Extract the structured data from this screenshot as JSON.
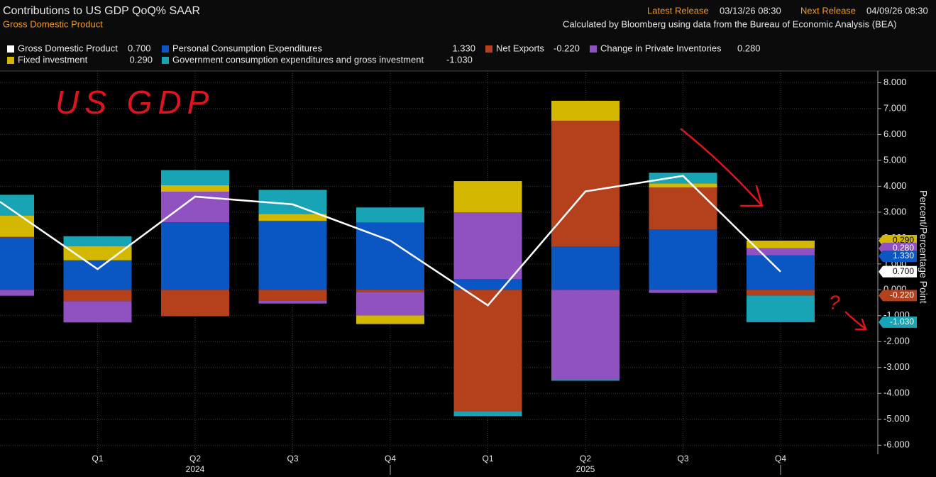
{
  "chart_data": {
    "type": "stacked_bar",
    "title": "Contributions to US GDP QoQ% SAAR",
    "subtitle": "Gross Domestic Product",
    "latest_release_label": "Latest Release",
    "latest_release": "03/13/26 08:30",
    "next_release_label": "Next Release",
    "next_release": "04/09/26 08:30",
    "source": "Calculated by Bloomberg using data from the Bureau of Economic Analysis (BEA)",
    "y_axis_label": "Percent/Percentage Point",
    "annotations": [
      "US GDP",
      "?"
    ],
    "categories": [
      null,
      "Q1",
      "Q2",
      "Q3",
      "Q4",
      "Q1",
      "Q2",
      "Q3",
      "Q4"
    ],
    "year_labels": [
      "2024",
      "2025"
    ],
    "series": [
      {
        "name": "Gross Domestic Product",
        "type": "line",
        "color": "#ffffff",
        "legend_value": "0.700",
        "values": [
          3.4,
          0.8,
          3.6,
          3.3,
          1.9,
          -0.6,
          3.8,
          4.4,
          0.7
        ]
      },
      {
        "name": "Personal Consumption Expenditures",
        "type": "bar",
        "color": "#0a56c2",
        "legend_value": "1.330",
        "values": [
          2.02,
          1.14,
          2.61,
          2.66,
          2.6,
          0.41,
          1.67,
          2.33,
          1.33
        ]
      },
      {
        "name": "Net Exports",
        "type": "bar",
        "color": "#b5401c",
        "legend_value": "-0.220",
        "values": [
          0.03,
          -0.44,
          -1.02,
          -0.42,
          -0.08,
          -4.69,
          4.86,
          1.62,
          -0.22
        ]
      },
      {
        "name": "Change in Private Inventories",
        "type": "bar",
        "color": "#9052c0",
        "legend_value": "0.280",
        "values": [
          -0.23,
          -0.82,
          1.18,
          -0.11,
          -0.91,
          2.58,
          -3.46,
          -0.12,
          0.28
        ]
      },
      {
        "name": "Fixed investment",
        "type": "bar",
        "color": "#d4b800",
        "legend_value": "0.290",
        "values": [
          0.82,
          0.55,
          0.25,
          0.27,
          -0.33,
          1.21,
          0.77,
          0.16,
          0.29
        ]
      },
      {
        "name": "Government consumption expenditures and gross investment",
        "type": "bar",
        "color": "#18a4b4",
        "legend_value": "-1.030",
        "values": [
          0.8,
          0.38,
          0.58,
          0.93,
          0.58,
          -0.19,
          -0.05,
          0.41,
          -1.03
        ]
      }
    ],
    "ylim": [
      -6.35,
      8.45
    ],
    "yticks": [
      {
        "value": 8,
        "label": "8.000"
      },
      {
        "value": 7,
        "label": "7.000"
      },
      {
        "value": 6,
        "label": "6.000"
      },
      {
        "value": 5,
        "label": "5.000"
      },
      {
        "value": 4,
        "label": "4.000"
      },
      {
        "value": 3,
        "label": "3.000"
      },
      {
        "value": 2,
        "label": "2.000"
      },
      {
        "value": 1,
        "label": "1.000"
      },
      {
        "value": 0,
        "label": "0.000"
      },
      {
        "value": -1,
        "label": "-1.000"
      },
      {
        "value": -2,
        "label": "-2.000"
      },
      {
        "value": -3,
        "label": "-3.000"
      },
      {
        "value": -4,
        "label": "-4.000"
      },
      {
        "value": -5,
        "label": "-5.000"
      },
      {
        "value": -6,
        "label": "-6.000"
      }
    ],
    "grid": true
  }
}
